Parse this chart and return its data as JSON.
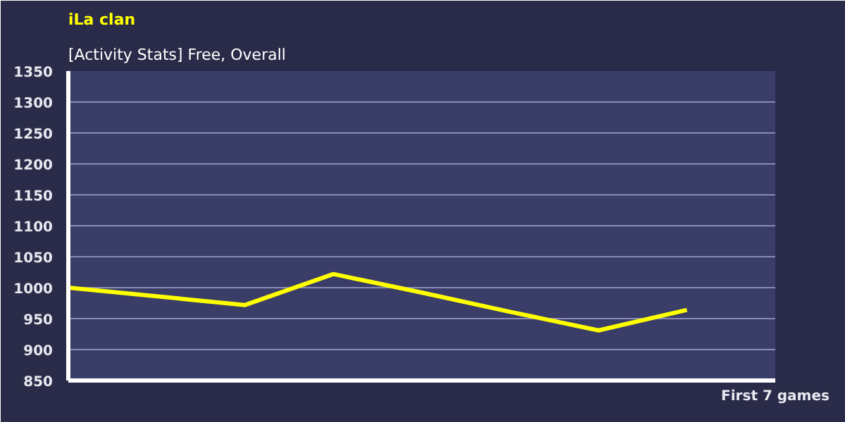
{
  "chart_data": {
    "type": "line",
    "title": "iLa clan",
    "subtitle": "[Activity Stats] Free, Overall",
    "xlabel": "First 7 games",
    "categories": [
      null,
      null,
      null,
      null,
      null,
      null,
      null,
      null
    ],
    "series": [
      {
        "color": "#ffff00",
        "values": [
          1000,
          986,
          972,
          1022,
          992,
          961,
          931,
          964
        ]
      }
    ],
    "ylim": [
      850,
      1350
    ],
    "yticks": [
      850,
      900,
      950,
      1000,
      1050,
      1100,
      1150,
      1200,
      1250,
      1300,
      1350
    ],
    "grid": "y",
    "tick_labels": "y",
    "marker": "none",
    "line_style": "solid"
  }
}
